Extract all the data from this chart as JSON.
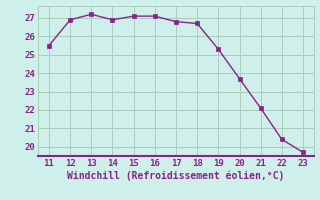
{
  "x": [
    11,
    12,
    13,
    14,
    15,
    16,
    17,
    18,
    19,
    20,
    21,
    22,
    23
  ],
  "y": [
    25.5,
    26.9,
    27.2,
    26.9,
    27.1,
    27.1,
    26.8,
    26.7,
    25.3,
    23.7,
    22.1,
    20.4,
    19.7
  ],
  "line_color": "#882288",
  "marker_color": "#882288",
  "bg_color": "#cff0ea",
  "grid_color": "#aaccbb",
  "xlabel": "Windchill (Refroidissement éolien,°C)",
  "xlabel_color": "#882288",
  "tick_color": "#882288",
  "spine_color": "#882288",
  "xlim": [
    10.5,
    23.5
  ],
  "ylim": [
    19.5,
    27.65
  ],
  "xticks": [
    11,
    12,
    13,
    14,
    15,
    16,
    17,
    18,
    19,
    20,
    21,
    22,
    23
  ],
  "yticks": [
    20,
    21,
    22,
    23,
    24,
    25,
    26,
    27
  ],
  "figsize": [
    3.2,
    2.0
  ],
  "dpi": 100
}
